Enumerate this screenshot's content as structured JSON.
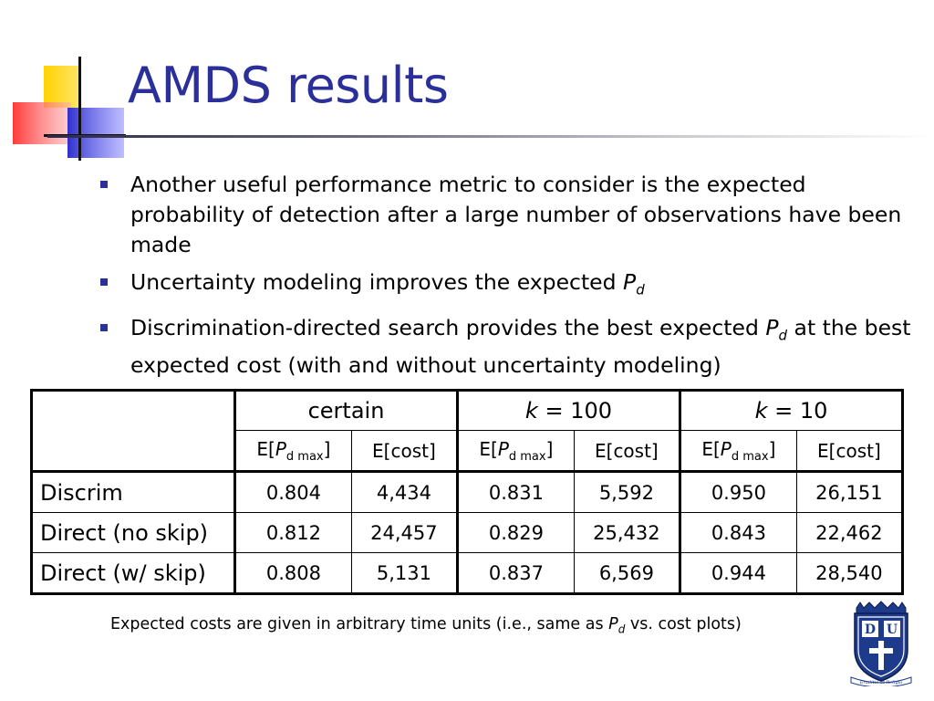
{
  "slide": {
    "title": "AMDS results",
    "bullets": [
      {
        "text": "Another useful performance metric to consider is the expected probability of detection after a large number of observations have been made"
      },
      {
        "before": "Uncertainty modeling improves the expected ",
        "pd_main": "P",
        "pd_sub": "d",
        "after": ""
      },
      {
        "before": "Discrimination-directed search provides the best expected ",
        "pd_main": "P",
        "pd_sub": "d",
        "after": " at the best expected cost (with and without uncertainty modeling)"
      }
    ]
  },
  "table": {
    "groups": [
      {
        "label": "certain"
      },
      {
        "var": "k",
        "rest": " = 100"
      },
      {
        "var": "k",
        "rest": " = 10"
      }
    ],
    "subheaders": {
      "pd_prefix": "E[",
      "pd_var": "P",
      "pd_sub": "d max",
      "pd_suffix": "]",
      "cost": "E[cost]"
    },
    "rows": [
      {
        "label": "Discrim",
        "values": [
          "0.804",
          "4,434",
          "0.831",
          "5,592",
          "0.950",
          "26,151"
        ]
      },
      {
        "label": "Direct (no skip)",
        "values": [
          "0.812",
          "24,457",
          "0.829",
          "25,432",
          "0.843",
          "22,462"
        ]
      },
      {
        "label": "Direct (w/ skip)",
        "values": [
          "0.808",
          "5,131",
          "0.837",
          "6,569",
          "0.944",
          "28,540"
        ]
      }
    ]
  },
  "footnote": {
    "before": "Expected costs are given in arbitrary time units (i.e., same as ",
    "pd_main": "P",
    "pd_sub": "d",
    "after": " vs. cost plots)"
  },
  "crest": {
    "letters": [
      "D",
      "U"
    ],
    "motto": "Eruditio et Religio"
  },
  "colors": {
    "title": "#2a2f9a",
    "bullet": "#2a2f9a",
    "deco_yellow": "#ffd200",
    "deco_red": "#ff4040",
    "deco_blue": "#3a3ad0",
    "crest_blue": "#1e3a8a"
  }
}
